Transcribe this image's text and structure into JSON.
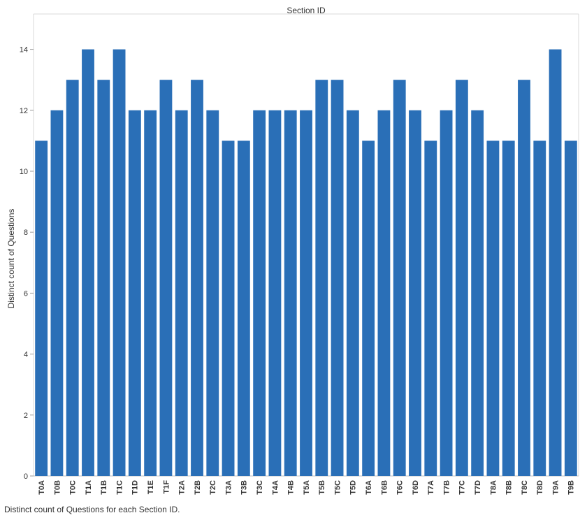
{
  "caption": "Distinct count of Questions for each Section ID.",
  "chart_data": {
    "type": "bar",
    "title": "Section ID",
    "xlabel": "Section ID",
    "ylabel": "Distinct count of Questions",
    "ylim": [
      0,
      15
    ],
    "yticks": [
      0,
      2,
      4,
      6,
      8,
      10,
      12,
      14
    ],
    "grid": false,
    "bar_color": "#2a6fb7",
    "categories": [
      "T0A",
      "T0B",
      "T0C",
      "T1A",
      "T1B",
      "T1C",
      "T1D",
      "T1E",
      "T1F",
      "T2A",
      "T2B",
      "T2C",
      "T3A",
      "T3B",
      "T3C",
      "T4A",
      "T4B",
      "T5A",
      "T5B",
      "T5C",
      "T5D",
      "T6A",
      "T6B",
      "T6C",
      "T6D",
      "T7A",
      "T7B",
      "T7C",
      "T7D",
      "T8A",
      "T8B",
      "T8C",
      "T8D",
      "T9A",
      "T9B"
    ],
    "values": [
      11,
      12,
      13,
      14,
      13,
      14,
      12,
      12,
      13,
      12,
      13,
      12,
      11,
      11,
      12,
      12,
      12,
      12,
      13,
      13,
      12,
      11,
      12,
      13,
      12,
      11,
      12,
      13,
      12,
      11,
      11,
      13,
      11,
      14,
      11
    ]
  }
}
